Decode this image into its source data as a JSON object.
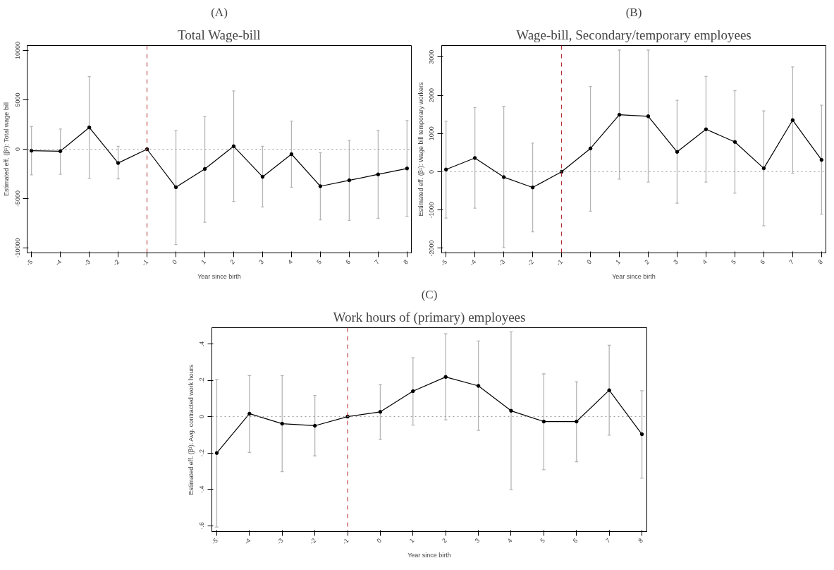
{
  "chart_data": [
    {
      "type": "line",
      "title": "(A)",
      "subtitle": "Total Wage-bill",
      "xlabel": "Year since birth",
      "ylabel": "Estimated eff. (β¹): Total wage bill",
      "x": [
        -5,
        -4,
        -3,
        -2,
        -1,
        0,
        1,
        2,
        3,
        4,
        5,
        6,
        7,
        8
      ],
      "series": [
        {
          "color": "#000000",
          "values": [
            -150,
            -200,
            2200,
            -1400,
            0,
            -3850,
            -2000,
            300,
            -2800,
            -500,
            -3750,
            -3150,
            -2550,
            -1950
          ],
          "errors": [
            [
              -2600,
              2300
            ],
            [
              -2550,
              2050
            ],
            [
              -2950,
              7350
            ],
            [
              -3000,
              300
            ],
            null,
            [
              -9650,
              1900
            ],
            [
              -7400,
              3300
            ],
            [
              -5300,
              5900
            ],
            [
              -5850,
              300
            ],
            [
              -3850,
              2850
            ],
            [
              -7150,
              -350
            ],
            [
              -7200,
              900
            ],
            [
              -7000,
              1900
            ],
            [
              -6800,
              2900
            ]
          ]
        }
      ],
      "xlim": [
        -5.15,
        8.15
      ],
      "xticks": [
        -5,
        -4,
        -3,
        -2,
        -1,
        0,
        1,
        2,
        3,
        4,
        5,
        6,
        7,
        8
      ],
      "ylim": [
        -10500,
        10500
      ],
      "yticks": [
        -10000,
        -5000,
        0,
        5000,
        10000
      ],
      "ref_lines": [
        {
          "axis": "x",
          "value": -1,
          "color": "#b22222",
          "line_style": "dashed"
        },
        {
          "axis": "y",
          "value": 0,
          "color": "#999999",
          "line_style": "dotted"
        }
      ],
      "marker": "circle",
      "line_style": "solid"
    },
    {
      "type": "line",
      "title": "(B)",
      "subtitle": "Wage-bill, Secondary/temporary employees",
      "xlabel": "Year since birth",
      "ylabel": "Estimated eff. (β¹): Wage bill temporary workers",
      "x": [
        -5,
        -4,
        -3,
        -2,
        -1,
        0,
        1,
        2,
        3,
        4,
        5,
        6,
        7,
        8
      ],
      "series": [
        {
          "color": "#000000",
          "values": [
            60,
            360,
            -140,
            -410,
            0,
            610,
            1490,
            1450,
            520,
            1110,
            780,
            90,
            1350,
            310
          ],
          "errors": [
            [
              -1210,
              1320
            ],
            [
              -950,
              1680
            ],
            [
              -1980,
              1710
            ],
            [
              -1570,
              750
            ],
            null,
            [
              -1030,
              2230
            ],
            [
              -190,
              3180
            ],
            [
              -270,
              3180
            ],
            [
              -820,
              1870
            ],
            [
              -270,
              2490
            ],
            [
              -560,
              2120
            ],
            [
              -1410,
              1590
            ],
            [
              -40,
              2740
            ],
            [
              -1110,
              1740
            ]
          ]
        }
      ],
      "xlim": [
        -5.15,
        8.15
      ],
      "xticks": [
        -5,
        -4,
        -3,
        -2,
        -1,
        0,
        1,
        2,
        3,
        4,
        5,
        6,
        7,
        8
      ],
      "ylim": [
        -2120,
        3300
      ],
      "yticks": [
        -2000,
        -1000,
        0,
        1000,
        2000,
        3000
      ],
      "ref_lines": [
        {
          "axis": "x",
          "value": -1,
          "color": "#b22222",
          "line_style": "dashed"
        },
        {
          "axis": "y",
          "value": 0,
          "color": "#999999",
          "line_style": "dotted"
        }
      ],
      "marker": "circle",
      "line_style": "solid"
    },
    {
      "type": "line",
      "title": "(C)",
      "subtitle": "Work hours of (primary) employees",
      "xlabel": "Year since birth",
      "ylabel": "Estimated eff. (β¹): Avg. contracted work hours",
      "x": [
        -5,
        -4,
        -3,
        -2,
        -1,
        0,
        1,
        2,
        3,
        4,
        5,
        6,
        7,
        8
      ],
      "series": [
        {
          "color": "#000000",
          "values": [
            -0.2,
            0.016,
            -0.039,
            -0.05,
            0,
            0.026,
            0.14,
            0.218,
            0.169,
            0.032,
            -0.027,
            -0.027,
            0.145,
            -0.097
          ],
          "errors": [
            [
              -0.607,
              0.205
            ],
            [
              -0.197,
              0.226
            ],
            [
              -0.303,
              0.226
            ],
            [
              -0.216,
              0.116
            ],
            null,
            [
              -0.126,
              0.176
            ],
            [
              -0.047,
              0.324
            ],
            [
              -0.018,
              0.455
            ],
            [
              -0.076,
              0.416
            ],
            [
              -0.402,
              0.466
            ],
            [
              -0.292,
              0.235
            ],
            [
              -0.248,
              0.192
            ],
            [
              -0.102,
              0.392
            ],
            [
              -0.339,
              0.142
            ]
          ]
        }
      ],
      "xlim": [
        -5.15,
        8.15
      ],
      "xticks": [
        -5,
        -4,
        -3,
        -2,
        -1,
        0,
        1,
        2,
        3,
        4,
        5,
        6,
        7,
        8
      ],
      "ylim": [
        -0.632,
        0.489
      ],
      "yticks": [
        {
          "value": -0.6,
          "label": "-.6"
        },
        {
          "value": -0.4,
          "label": "-.4"
        },
        {
          "value": -0.2,
          "label": "-.2"
        },
        0,
        {
          "value": 0.2,
          "label": ".2"
        },
        {
          "value": 0.4,
          "label": ".4"
        }
      ],
      "ref_lines": [
        {
          "axis": "x",
          "value": -1,
          "color": "#b22222",
          "line_style": "dashed"
        },
        {
          "axis": "y",
          "value": 0,
          "color": "#999999",
          "line_style": "dotted"
        }
      ],
      "marker": "circle",
      "line_style": "solid"
    }
  ]
}
